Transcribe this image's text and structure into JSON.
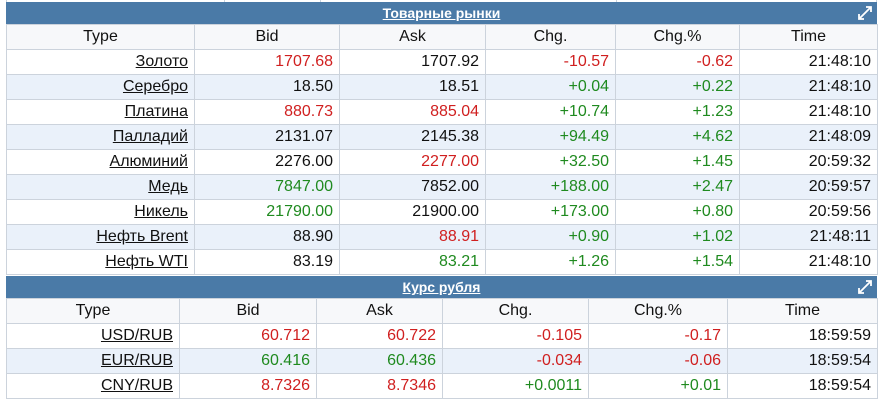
{
  "colors": {
    "header_bar": "#4a7aa7",
    "positive": "#1f8a1f",
    "negative": "#d01f1f"
  },
  "commodities": {
    "title": "Товарные рынки",
    "expand_icon": "expand-arrow-icon",
    "columns": [
      "Type",
      "Bid",
      "Ask",
      "Chg.",
      "Chg.%",
      "Time"
    ],
    "rows": [
      {
        "type": "Золото",
        "bid": "1707.68",
        "bid_color": "red",
        "ask": "1707.92",
        "ask_color": "black",
        "chg": "-10.57",
        "chg_pct": "-0.62",
        "time": "21:48:10"
      },
      {
        "type": "Серебро",
        "bid": "18.50",
        "bid_color": "black",
        "ask": "18.51",
        "ask_color": "black",
        "chg": "+0.04",
        "chg_pct": "+0.22",
        "time": "21:48:10"
      },
      {
        "type": "Платина",
        "bid": "880.73",
        "bid_color": "red",
        "ask": "885.04",
        "ask_color": "red",
        "chg": "+10.74",
        "chg_pct": "+1.23",
        "time": "21:48:10"
      },
      {
        "type": "Палладий",
        "bid": "2131.07",
        "bid_color": "black",
        "ask": "2145.38",
        "ask_color": "black",
        "chg": "+94.49",
        "chg_pct": "+4.62",
        "time": "21:48:09"
      },
      {
        "type": "Алюминий",
        "bid": "2276.00",
        "bid_color": "black",
        "ask": "2277.00",
        "ask_color": "red",
        "chg": "+32.50",
        "chg_pct": "+1.45",
        "time": "20:59:32"
      },
      {
        "type": "Медь",
        "bid": "7847.00",
        "bid_color": "green",
        "ask": "7852.00",
        "ask_color": "black",
        "chg": "+188.00",
        "chg_pct": "+2.47",
        "time": "20:59:57"
      },
      {
        "type": "Никель",
        "bid": "21790.00",
        "bid_color": "green",
        "ask": "21900.00",
        "ask_color": "black",
        "chg": "+173.00",
        "chg_pct": "+0.80",
        "time": "20:59:56"
      },
      {
        "type": "Нефть Brent",
        "bid": "88.90",
        "bid_color": "black",
        "ask": "88.91",
        "ask_color": "red",
        "chg": "+0.90",
        "chg_pct": "+1.02",
        "time": "21:48:11"
      },
      {
        "type": "Нефть WTI",
        "bid": "83.19",
        "bid_color": "black",
        "ask": "83.21",
        "ask_color": "green",
        "chg": "+1.26",
        "chg_pct": "+1.54",
        "time": "21:48:10"
      }
    ]
  },
  "rub": {
    "title": "Курс рубля",
    "expand_icon": "expand-arrow-icon",
    "columns": [
      "Type",
      "Bid",
      "Ask",
      "Chg.",
      "Chg.%",
      "Time"
    ],
    "rows": [
      {
        "type": "USD/RUB",
        "bid": "60.712",
        "bid_color": "red",
        "ask": "60.722",
        "ask_color": "red",
        "chg": "-0.105",
        "chg_pct": "-0.17",
        "time": "18:59:59"
      },
      {
        "type": "EUR/RUB",
        "bid": "60.416",
        "bid_color": "green",
        "ask": "60.436",
        "ask_color": "green",
        "chg": "-0.034",
        "chg_pct": "-0.06",
        "time": "18:59:54"
      },
      {
        "type": "CNY/RUB",
        "bid": "8.7326",
        "bid_color": "red",
        "ask": "8.7346",
        "ask_color": "red",
        "chg": "+0.0011",
        "chg_pct": "+0.01",
        "time": "18:59:54"
      }
    ]
  }
}
